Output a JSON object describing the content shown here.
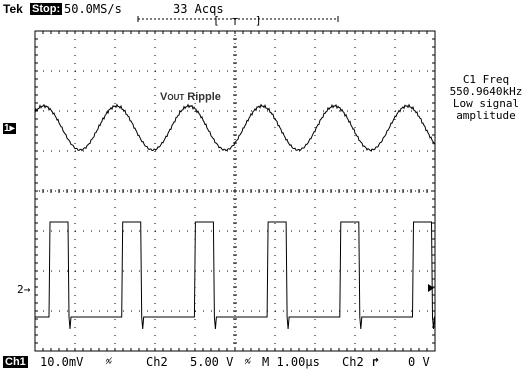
{
  "header": {
    "brand": "Tek",
    "mode": "Stop:",
    "sample_rate": "50.0MS/s",
    "acquisitions": "33 Acqs",
    "trigger_marker": "T"
  },
  "annotation": {
    "v": "V",
    "sub": "OUT",
    "text": " Ripple"
  },
  "measurement": {
    "label": "C1 Freq",
    "value": "550.9640kHz",
    "status_line1": "Low signal",
    "status_line2": "amplitude"
  },
  "markers": {
    "ch1": "1",
    "ch2": "2"
  },
  "status_bar": {
    "ch1": "Ch1",
    "ch1_scale": "10.0mV",
    "ch2": "Ch2",
    "ch2_scale": "5.00 V",
    "timebase": "M 1.00µs",
    "trigger_source": "Ch2",
    "trigger_level": "0 V"
  },
  "icons": {
    "bandwidth": "bandwidth-limit-icon",
    "trigger_slope": "rising-edge-icon",
    "ch1_marker": "ch1-ground-arrow-icon",
    "ch2_marker": "ch2-ground-arrow-icon",
    "trigger_level": "trigger-level-arrow-icon"
  },
  "colors": {
    "background": "#ffffff",
    "trace": "#000000",
    "graticule": "#000000"
  }
}
